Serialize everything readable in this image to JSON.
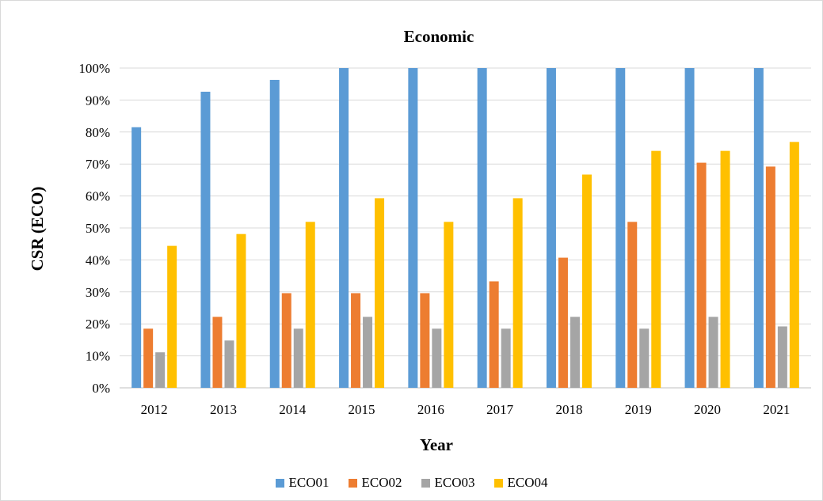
{
  "chart_data": {
    "type": "bar",
    "title": "Economic",
    "xlabel": "Year",
    "ylabel": "CSR (ECO)",
    "ylim": [
      0,
      1
    ],
    "yticks": [
      "0%",
      "10%",
      "20%",
      "30%",
      "40%",
      "50%",
      "60%",
      "70%",
      "80%",
      "90%",
      "100%"
    ],
    "grid": true,
    "legend_position": "bottom",
    "categories": [
      "2012",
      "2013",
      "2014",
      "2015",
      "2016",
      "2017",
      "2018",
      "2019",
      "2020",
      "2021"
    ],
    "series": [
      {
        "name": "ECO01",
        "color": "#5b9bd5",
        "values": [
          0.815,
          0.926,
          0.963,
          1.0,
          1.0,
          1.0,
          1.0,
          1.0,
          1.0,
          1.0
        ]
      },
      {
        "name": "ECO02",
        "color": "#ed7d31",
        "values": [
          0.185,
          0.222,
          0.296,
          0.296,
          0.296,
          0.333,
          0.407,
          0.519,
          0.704,
          0.692
        ]
      },
      {
        "name": "ECO03",
        "color": "#a5a5a5",
        "values": [
          0.111,
          0.148,
          0.185,
          0.222,
          0.185,
          0.185,
          0.222,
          0.185,
          0.222,
          0.192
        ]
      },
      {
        "name": "ECO04",
        "color": "#ffc000",
        "values": [
          0.444,
          0.481,
          0.519,
          0.593,
          0.519,
          0.593,
          0.667,
          0.741,
          0.741,
          0.769
        ]
      }
    ]
  }
}
